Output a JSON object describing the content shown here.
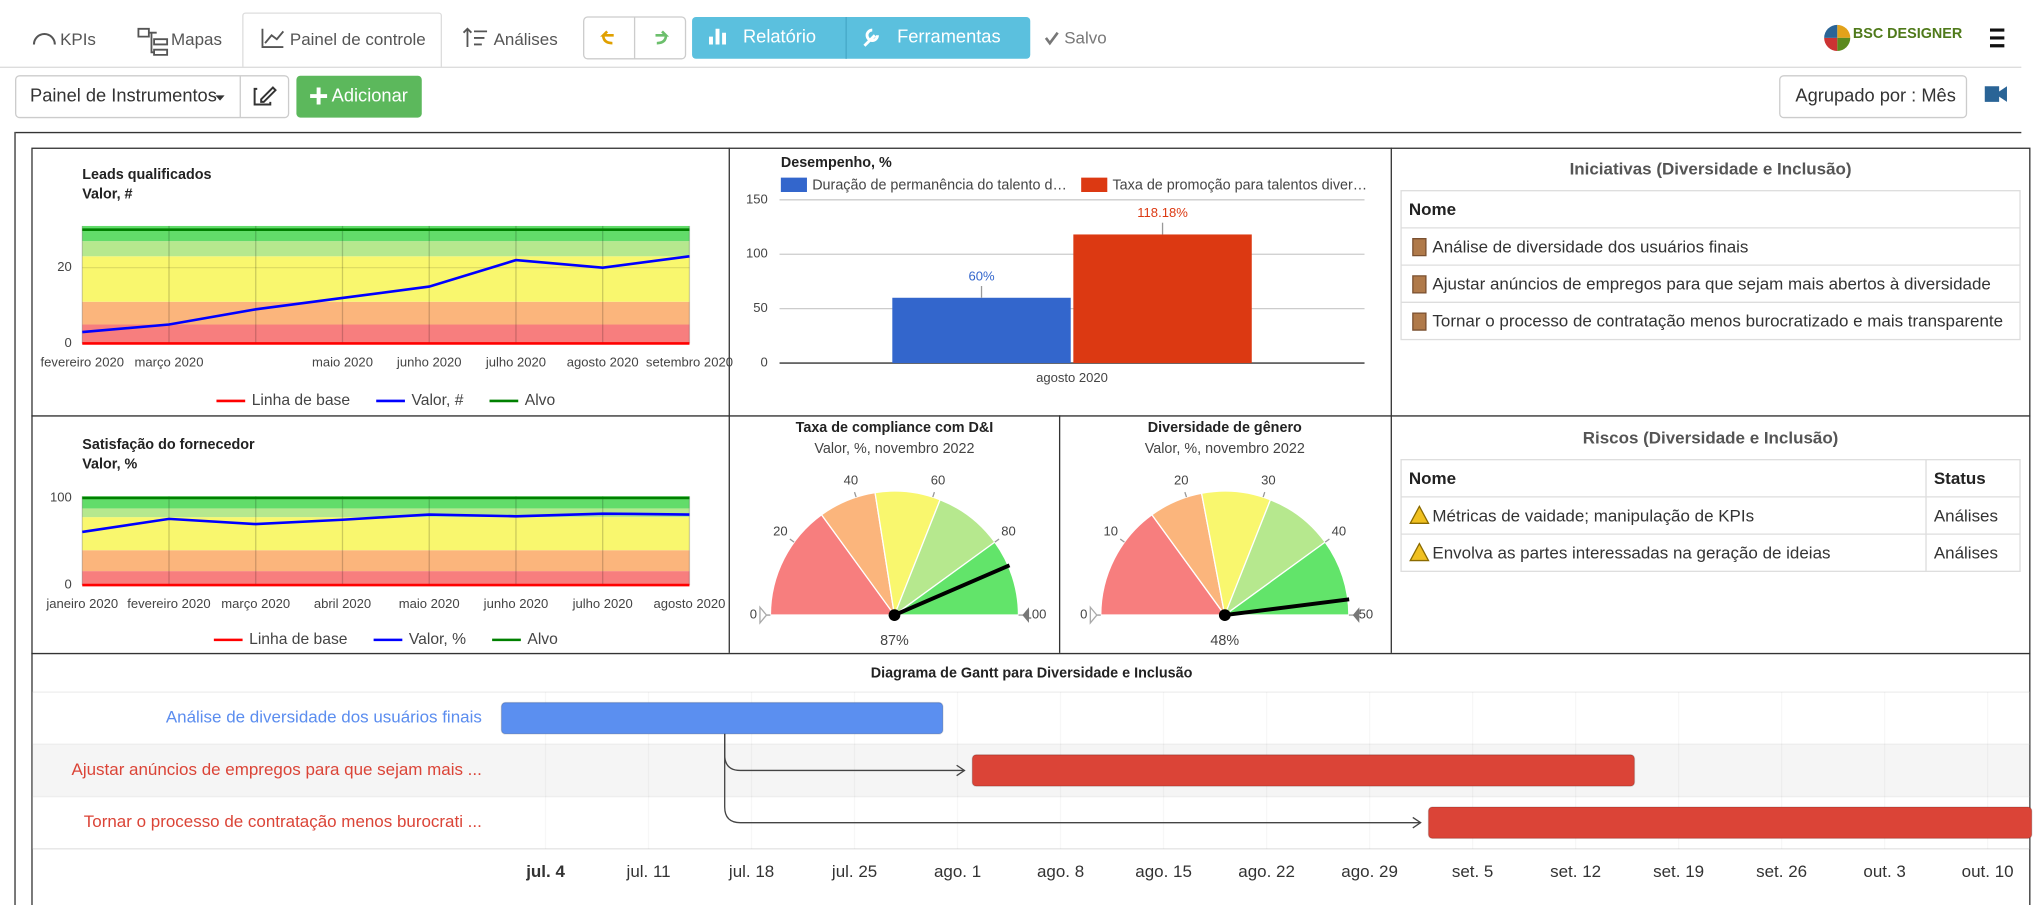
{
  "toolbar": {
    "tabs": [
      "KPIs",
      "Mapas",
      "Painel de controle",
      "Análises"
    ],
    "buttons": [
      "Relatório",
      "Ferramentas"
    ],
    "status": "Salvo",
    "logo": "BSC DESIGNER"
  },
  "actions": {
    "dashboard": "Painel de Instrumentos",
    "add": "Adicionar",
    "group": "Agrupado por : Mês"
  },
  "chart_data": [
    {
      "type": "line",
      "title": "Leads qualificados",
      "subtitle": "Valor, #",
      "categories": [
        "fevereiro 2020",
        "março 2020",
        null,
        "maio 2020",
        "junho 2020",
        "julho 2020",
        "agosto 2020",
        "setembro 2020"
      ],
      "series": [
        {
          "name": "Linha de base",
          "color": "#ff0000",
          "values": [
            0,
            0,
            0,
            0,
            0,
            0,
            0,
            0
          ]
        },
        {
          "name": "Valor, #",
          "color": "#0000ff",
          "values": [
            3,
            5,
            9,
            12,
            15,
            22,
            20,
            23
          ]
        },
        {
          "name": "Alvo",
          "color": "#008000",
          "values": [
            30,
            30,
            30,
            30,
            30,
            30,
            30,
            30
          ]
        }
      ],
      "bands": [
        {
          "from": 0,
          "to": 5,
          "color": "#f77e7e"
        },
        {
          "from": 5,
          "to": 11,
          "color": "#fbb57c"
        },
        {
          "from": 11,
          "to": 23,
          "color": "#f9f76e"
        },
        {
          "from": 23,
          "to": 27,
          "color": "#b6e88e"
        },
        {
          "from": 27,
          "to": 31,
          "color": "#62dc6a"
        }
      ],
      "ylim": [
        0,
        31
      ],
      "yticks": [
        0,
        20
      ],
      "grid": true
    },
    {
      "type": "bar",
      "title": "Desempenho, %",
      "categories": [
        "agosto 2020"
      ],
      "series": [
        {
          "name": "Duração de permanência do talento d…",
          "color": "#3366cc",
          "values": [
            60
          ],
          "value_labels": [
            "60%"
          ]
        },
        {
          "name": "Taxa de promoção para talentos diver…",
          "color": "#dc3912",
          "values": [
            118.18
          ],
          "value_labels": [
            "118.18%"
          ]
        }
      ],
      "ylim": [
        0,
        150
      ],
      "yticks": [
        0,
        50,
        100,
        150
      ],
      "grid": true
    },
    {
      "type": "line",
      "title": "Satisfação do fornecedor",
      "subtitle": "Valor, %",
      "categories": [
        "janeiro 2020",
        "fevereiro 2020",
        "março 2020",
        "abril 2020",
        "maio 2020",
        "junho 2020",
        "julho 2020",
        "agosto 2020"
      ],
      "series": [
        {
          "name": "Linha de base",
          "color": "#ff0000",
          "values": [
            0,
            0,
            0,
            0,
            0,
            0,
            0,
            0
          ]
        },
        {
          "name": "Valor, %",
          "color": "#0000ff",
          "values": [
            61,
            76,
            70,
            75,
            81,
            79,
            82,
            81
          ]
        },
        {
          "name": "Alvo",
          "color": "#008000",
          "values": [
            100,
            100,
            100,
            100,
            100,
            100,
            100,
            100
          ]
        }
      ],
      "bands": [
        {
          "from": 0,
          "to": 16,
          "color": "#f77e7e"
        },
        {
          "from": 16,
          "to": 40,
          "color": "#fbb57c"
        },
        {
          "from": 40,
          "to": 78,
          "color": "#f9f76e"
        },
        {
          "from": 78,
          "to": 88,
          "color": "#b6e88e"
        },
        {
          "from": 88,
          "to": 102,
          "color": "#62dc6a"
        }
      ],
      "ylim": [
        0,
        102
      ],
      "yticks": [
        0,
        100
      ],
      "grid": true
    },
    {
      "type": "gauge",
      "title": "Taxa de compliance com D&I",
      "subtitle": "Valor, %, novembro 2022",
      "values": [
        87
      ],
      "value_labels": [
        "87%"
      ],
      "ylim": [
        0,
        100
      ],
      "yticks": [
        0,
        20,
        40,
        60,
        80,
        100
      ],
      "bands": [
        {
          "from": 0,
          "to": 30,
          "color": "#f77e7e"
        },
        {
          "from": 30,
          "to": 45,
          "color": "#fbb57c"
        },
        {
          "from": 45,
          "to": 62,
          "color": "#f9f76e"
        },
        {
          "from": 62,
          "to": 80,
          "color": "#b6e88e"
        },
        {
          "from": 80,
          "to": 100,
          "color": "#62e46a"
        }
      ]
    },
    {
      "type": "gauge",
      "title": "Diversidade de gênero",
      "subtitle": "Valor, %, novembro 2022",
      "values": [
        48
      ],
      "value_labels": [
        "48%"
      ],
      "ylim": [
        0,
        50
      ],
      "yticks": [
        0,
        10,
        20,
        30,
        40,
        50
      ],
      "bands": [
        {
          "from": 0,
          "to": 15,
          "color": "#f77e7e"
        },
        {
          "from": 15,
          "to": 22,
          "color": "#fbb57c"
        },
        {
          "from": 22,
          "to": 31,
          "color": "#f9f76e"
        },
        {
          "from": 31,
          "to": 40,
          "color": "#b6e88e"
        },
        {
          "from": 40,
          "to": 50,
          "color": "#62e46a"
        }
      ]
    },
    {
      "type": "gantt",
      "title": "Diagrama de Gantt para Diversidade e Inclusão",
      "tasks": [
        {
          "name": "Análise de diversidade dos usuários finais",
          "color": "#5b8ff0",
          "label_color": "#5b8def",
          "start": 182,
          "end": 212
        },
        {
          "name": "Ajustar anúncios de empregos para que sejam mais ...",
          "color": "#db4437",
          "label_color": "#db4437",
          "start": 214,
          "end": 259
        },
        {
          "name": "Tornar o processo de contratação menos burocrati ...",
          "color": "#db4437",
          "label_color": "#db4437",
          "start": 245,
          "end": 286
        }
      ],
      "xlim": [
        182,
        286
      ],
      "xticks": [
        {
          "value": 185,
          "label": "jul. 4"
        },
        {
          "value": 192,
          "label": "jul. 11"
        },
        {
          "value": 199,
          "label": "jul. 18"
        },
        {
          "value": 206,
          "label": "jul. 25"
        },
        {
          "value": 213,
          "label": "ago. 1"
        },
        {
          "value": 220,
          "label": "ago. 8"
        },
        {
          "value": 227,
          "label": "ago. 15"
        },
        {
          "value": 234,
          "label": "ago. 22"
        },
        {
          "value": 241,
          "label": "ago. 29"
        },
        {
          "value": 248,
          "label": "set. 5"
        },
        {
          "value": 255,
          "label": "set. 12"
        },
        {
          "value": 262,
          "label": "set. 19"
        },
        {
          "value": 269,
          "label": "set. 26"
        },
        {
          "value": 276,
          "label": "out. 3"
        },
        {
          "value": 283,
          "label": "out. 10"
        }
      ]
    }
  ],
  "initiatives": {
    "title": "Iniciativas (Diversidade e Inclusão)",
    "header": [
      "Nome"
    ],
    "rows": [
      [
        "Análise de diversidade dos usuários finais"
      ],
      [
        "Ajustar anúncios de empregos para que sejam mais abertos à diversidade"
      ],
      [
        "Tornar o processo de contratação menos burocratizado e mais transparente"
      ]
    ]
  },
  "risks": {
    "title": "Riscos (Diversidade e Inclusão)",
    "header": [
      "Nome",
      "Status"
    ],
    "rows": [
      [
        "Métricas de vaidade; manipulação de KPIs",
        "Análises"
      ],
      [
        "Envolva as partes interessadas na geração de ideias",
        "Análises"
      ]
    ]
  }
}
